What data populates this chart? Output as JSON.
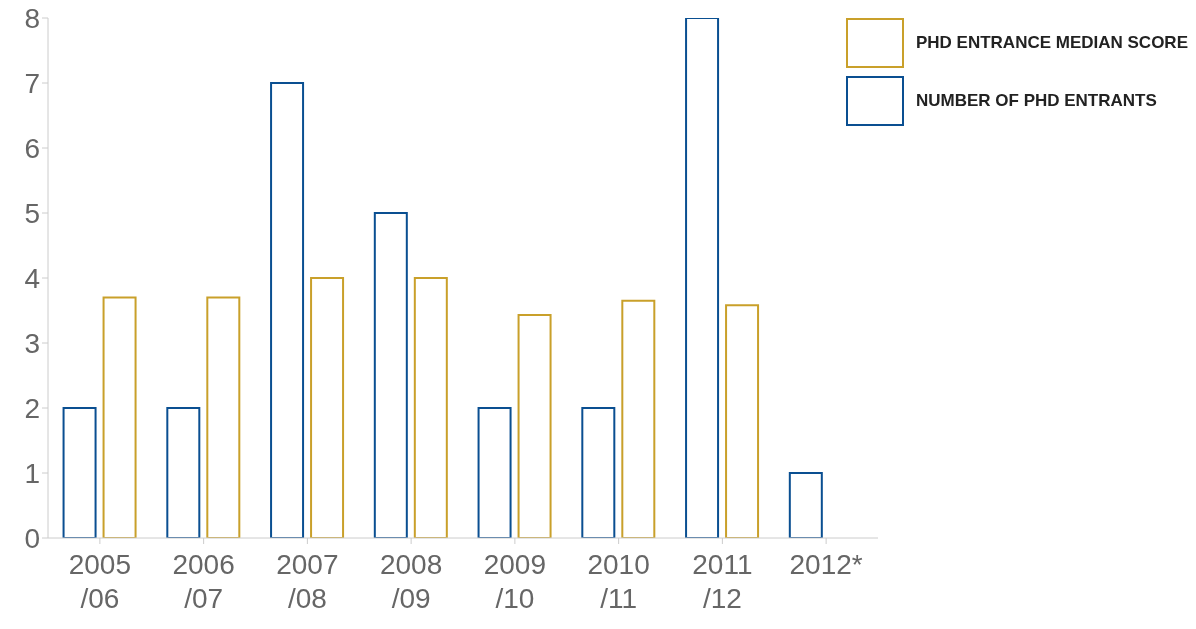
{
  "chart_data": {
    "type": "bar",
    "categories": [
      "2005\n/06",
      "2006\n/07",
      "2007\n/08",
      "2008\n/09",
      "2009\n/10",
      "2010\n/11",
      "2011\n/12",
      "2012*"
    ],
    "series": [
      {
        "name": "NUMBER OF PHD ENTRANTS",
        "color": "#0a4f91",
        "values": [
          2,
          2,
          7,
          5,
          2,
          2,
          8,
          1
        ]
      },
      {
        "name": "PHD ENTRANCE MEDIAN SCORE",
        "color": "#c9a02a",
        "values": [
          3.7,
          3.7,
          4.0,
          4.0,
          3.43,
          3.65,
          3.58,
          null
        ]
      }
    ],
    "ylim": [
      0,
      8
    ],
    "yticks": [
      0,
      1,
      2,
      3,
      4,
      5,
      6,
      7,
      8
    ],
    "grid": false,
    "legend": "top right"
  }
}
